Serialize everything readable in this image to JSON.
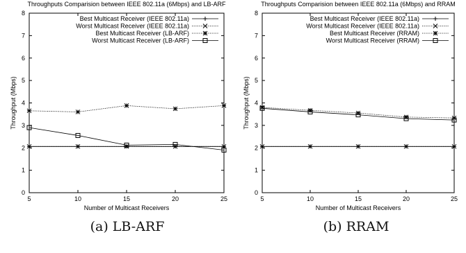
{
  "chart_data": [
    {
      "type": "line",
      "title": "Throughputs Comparision between IEEE 802.11a (6Mbps) and LB-ARF",
      "xlabel": "Number of Multicast Receivers",
      "ylabel": "Throughput (Mbps)",
      "xlim": [
        5,
        25
      ],
      "ylim": [
        0,
        8
      ],
      "x_ticks": [
        "5",
        "10",
        "15",
        "20",
        "25"
      ],
      "y_ticks": [
        "0",
        "1",
        "2",
        "3",
        "4",
        "5",
        "6",
        "7",
        "8"
      ],
      "grid": false,
      "legend_position": "top-right",
      "caption": "(a) LB-ARF",
      "series": [
        {
          "name": "Best Multicast Receiver (IEEE 802.11a)",
          "marker": "plus",
          "dash": "solid",
          "x": [
            5,
            10,
            15,
            20,
            25
          ],
          "y": [
            2.06,
            2.06,
            2.06,
            2.06,
            2.06
          ]
        },
        {
          "name": "Worst Multicast Receiver (IEEE 802.11a)",
          "marker": "cross",
          "dash": "dotted",
          "x": [
            5,
            10,
            15,
            20,
            25
          ],
          "y": [
            2.06,
            2.06,
            2.06,
            2.06,
            2.06
          ]
        },
        {
          "name": "Best Multicast Receiver (LB-ARF)",
          "marker": "star",
          "dash": "dotted",
          "x": [
            5,
            10,
            15,
            20,
            25
          ],
          "y": [
            3.65,
            3.6,
            3.88,
            3.74,
            3.88
          ]
        },
        {
          "name": "Worst Multicast Receiver (LB-ARF)",
          "marker": "square",
          "dash": "solid",
          "x": [
            5,
            10,
            15,
            20,
            25
          ],
          "y": [
            2.9,
            2.55,
            2.12,
            2.15,
            1.9
          ]
        }
      ]
    },
    {
      "type": "line",
      "title": "Throughputs Comparision between IEEE 802.11a (6Mbps) and RRAM",
      "xlabel": "Number of Multicast Receivers",
      "ylabel": "Throughput (Mbps)",
      "xlim": [
        5,
        25
      ],
      "ylim": [
        0,
        8
      ],
      "x_ticks": [
        "5",
        "10",
        "15",
        "20",
        "25"
      ],
      "y_ticks": [
        "0",
        "1",
        "2",
        "3",
        "4",
        "5",
        "6",
        "7",
        "8"
      ],
      "grid": false,
      "legend_position": "top-right",
      "caption": "(b) RRAM",
      "series": [
        {
          "name": "Best Multicast Receiver (IEEE 802.11a)",
          "marker": "plus",
          "dash": "solid",
          "x": [
            5,
            10,
            15,
            20,
            25
          ],
          "y": [
            2.06,
            2.06,
            2.06,
            2.06,
            2.06
          ]
        },
        {
          "name": "Worst Multicast Receiver (IEEE 802.11a)",
          "marker": "cross",
          "dash": "dotted",
          "x": [
            5,
            10,
            15,
            20,
            25
          ],
          "y": [
            2.06,
            2.06,
            2.06,
            2.06,
            2.06
          ]
        },
        {
          "name": "Best Multicast Receiver (RRAM)",
          "marker": "star",
          "dash": "dotted",
          "x": [
            5,
            10,
            15,
            20,
            25
          ],
          "y": [
            3.8,
            3.67,
            3.55,
            3.37,
            3.33
          ]
        },
        {
          "name": "Worst Multicast Receiver (RRAM)",
          "marker": "square",
          "dash": "solid",
          "x": [
            5,
            10,
            15,
            20,
            25
          ],
          "y": [
            3.76,
            3.6,
            3.47,
            3.3,
            3.24
          ]
        }
      ]
    }
  ]
}
